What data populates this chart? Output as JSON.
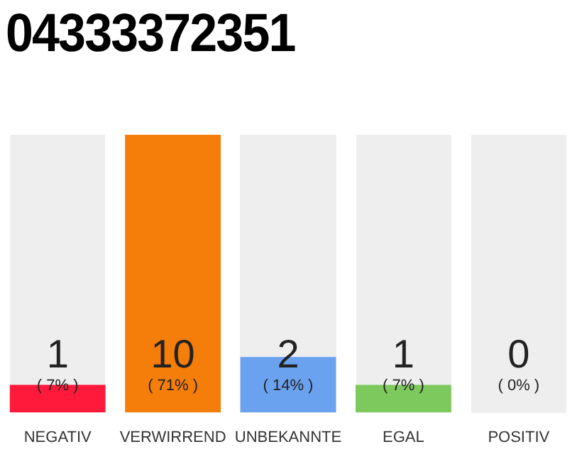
{
  "chart_data": {
    "type": "bar",
    "title": "04333372351",
    "categories": [
      "NEGATIV",
      "VERWIRREND",
      "UNBEKANNTE",
      "EGAL",
      "POSITIV"
    ],
    "values": [
      1,
      10,
      2,
      1,
      0
    ],
    "colors": [
      "#ff1a3c",
      "#f57d0a",
      "#6aa2f0",
      "#7dc95e",
      "#cccccc"
    ],
    "ylim": [
      0,
      10
    ],
    "data_labels": true,
    "legend": false,
    "annotations": [
      "( 7% )",
      "( 71% )",
      "( 14% )",
      "( 7% )",
      "( 0% )"
    ]
  }
}
